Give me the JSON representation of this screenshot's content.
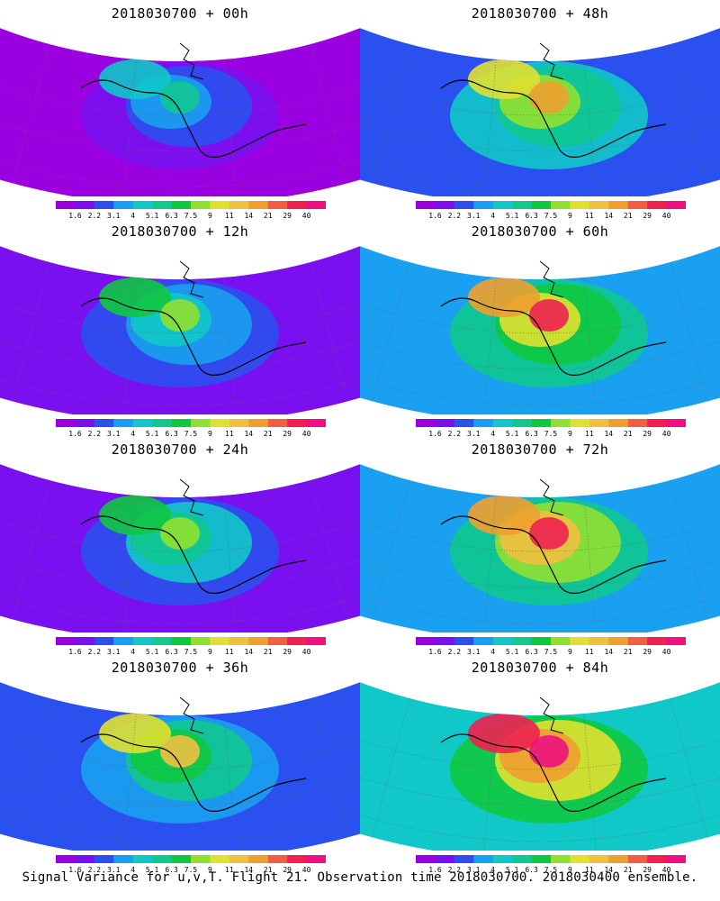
{
  "panels": [
    {
      "title": "2018030700 + 00h",
      "lead_hours": 0
    },
    {
      "title": "2018030700 + 48h",
      "lead_hours": 48
    },
    {
      "title": "2018030700 + 12h",
      "lead_hours": 12
    },
    {
      "title": "2018030700 + 60h",
      "lead_hours": 60
    },
    {
      "title": "2018030700 + 24h",
      "lead_hours": 24
    },
    {
      "title": "2018030700 + 72h",
      "lead_hours": 72
    },
    {
      "title": "2018030700 + 36h",
      "lead_hours": 36
    },
    {
      "title": "2018030700 + 84h",
      "lead_hours": 84
    }
  ],
  "colorbar": {
    "labels": [
      "1.6",
      "2.2",
      "3.1",
      "4",
      "5.1",
      "6.3",
      "7.5",
      "9",
      "11",
      "14",
      "21",
      "29",
      "40"
    ],
    "colors": [
      "#9b00e0",
      "#7a10f0",
      "#2a50f0",
      "#1aa0f0",
      "#10c8c8",
      "#10c890",
      "#10c840",
      "#90e030",
      "#e0e030",
      "#f0c040",
      "#f0a030",
      "#f06040",
      "#f02050",
      "#f01080"
    ]
  },
  "footer": "Signal Variance for u,v,T. Flight 21. Observation time 2018030700. 2018030400 ensemble."
}
